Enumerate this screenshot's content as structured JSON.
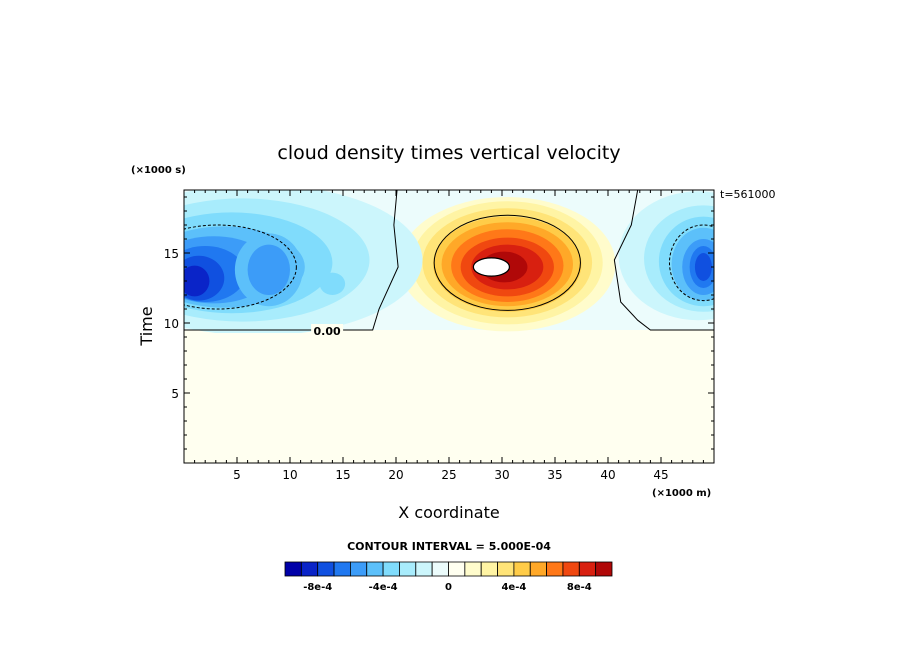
{
  "chart_data": {
    "type": "heatmap",
    "title": "cloud density times vertical velocity",
    "xlabel": "X coordinate",
    "ylabel": "Time",
    "x_unit_label": "(×1000 m)",
    "y_unit_label": "(×1000 s)",
    "time_stamp": "t=561000",
    "xlim": [
      0,
      50
    ],
    "ylim": [
      0,
      19.5
    ],
    "x_ticks": [
      5,
      10,
      15,
      20,
      25,
      30,
      35,
      40,
      45
    ],
    "y_ticks": [
      5,
      10,
      15
    ],
    "contour_interval_text": "CONTOUR INTERVAL = 5.000E-04",
    "zero_contour_label": "0.00",
    "background_value": 0,
    "cloud_base_time": 9.5,
    "features": [
      {
        "kind": "updraft core",
        "x_center": 30.5,
        "y_center": 14.0,
        "peak": 0.001,
        "x_extent": [
          20,
          40
        ]
      },
      {
        "kind": "downdraft",
        "x_center": 1.0,
        "y_center": 13.0,
        "peak": -0.0009,
        "x_extent": [
          0,
          18
        ]
      },
      {
        "kind": "downdraft",
        "x_center": 49.0,
        "y_center": 14.0,
        "peak": -0.0009,
        "x_extent": [
          42,
          50
        ]
      }
    ],
    "colorbar": {
      "levels": [
        -0.001,
        -0.0009,
        -0.0008,
        -0.0007,
        -0.0006,
        -0.0005,
        -0.0004,
        -0.0003,
        -0.0002,
        -0.0001,
        0,
        0.0001,
        0.0002,
        0.0003,
        0.0004,
        0.0005,
        0.0006,
        0.0007,
        0.0008,
        0.0009,
        0.001
      ],
      "colors": [
        "#0000a8",
        "#0a24c8",
        "#1050e0",
        "#2078f0",
        "#3c9cf8",
        "#5cc0fa",
        "#80dcfc",
        "#a8ecfc",
        "#ccf6fc",
        "#ecfcfc",
        "#fffff0",
        "#fffccc",
        "#fff4a4",
        "#ffe478",
        "#ffcc48",
        "#ffa828",
        "#ff7818",
        "#f04810",
        "#d82010",
        "#b00808"
      ],
      "tick_labels": [
        "-8e-4",
        "-4e-4",
        "0",
        "4e-4",
        "8e-4"
      ],
      "tick_values": [
        -0.0008,
        -0.0004,
        0,
        0.0004,
        0.0008
      ]
    }
  }
}
